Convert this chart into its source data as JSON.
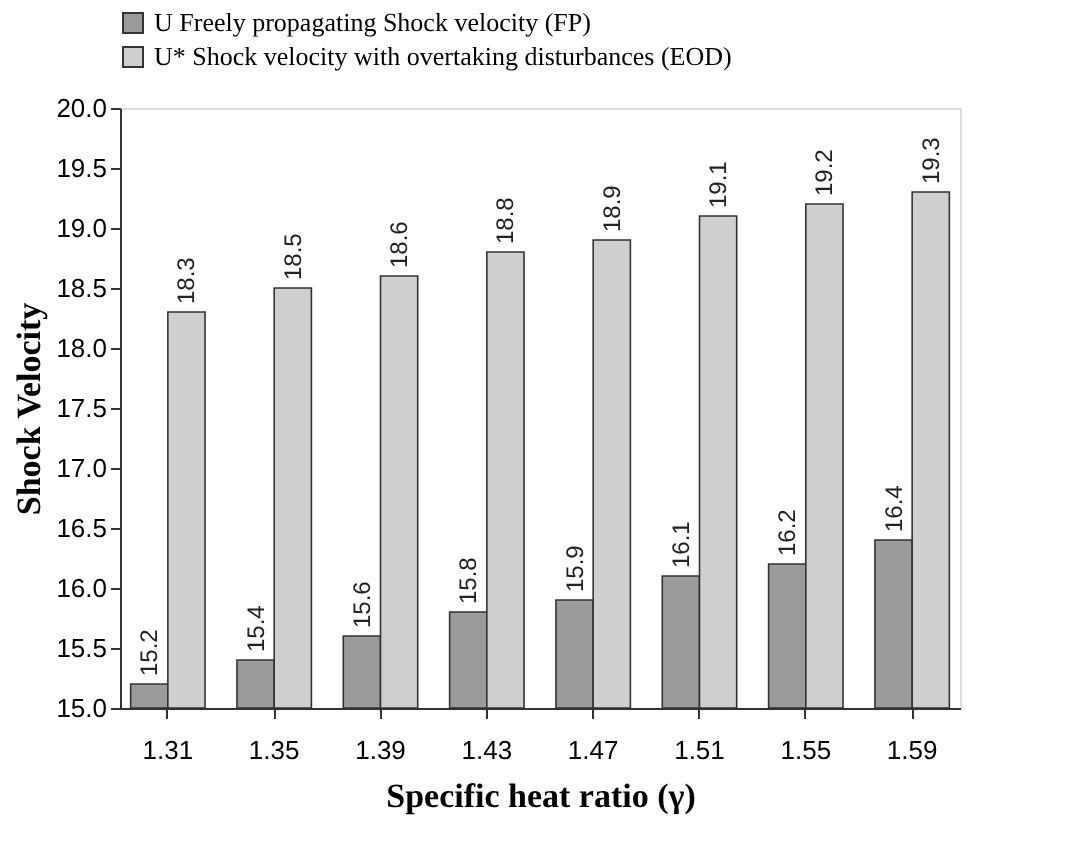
{
  "chart_data": {
    "type": "bar",
    "xlabel": "Specific heat ratio (γ)",
    "ylabel": "Shock Velocity",
    "categories": [
      "1.31",
      "1.35",
      "1.39",
      "1.43",
      "1.47",
      "1.51",
      "1.55",
      "1.59"
    ],
    "series": [
      {
        "name": "U Freely propagating Shock velocity  (FP)",
        "color": "#9a9a9a",
        "values": [
          15.2,
          15.4,
          15.6,
          15.8,
          15.9,
          16.1,
          16.2,
          16.4
        ]
      },
      {
        "name": "U* Shock velocity  with overtaking disturbances (EOD)",
        "color": "#cfcfcf",
        "values": [
          18.3,
          18.5,
          18.6,
          18.8,
          18.9,
          19.1,
          19.2,
          19.3
        ]
      }
    ],
    "ylim": [
      15.0,
      20.0
    ],
    "yticks": [
      {
        "value": 15,
        "label": "15.0"
      },
      15.5,
      {
        "value": 16,
        "label": "16.0"
      },
      16.5,
      {
        "value": 17,
        "label": "17.0"
      },
      17.5,
      {
        "value": 18,
        "label": "18.0"
      },
      18.5,
      {
        "value": 19,
        "label": "19.0"
      },
      19.5,
      {
        "value": 20,
        "label": "20.0"
      }
    ],
    "data_labels": true,
    "grid": false,
    "legend": "top left"
  }
}
